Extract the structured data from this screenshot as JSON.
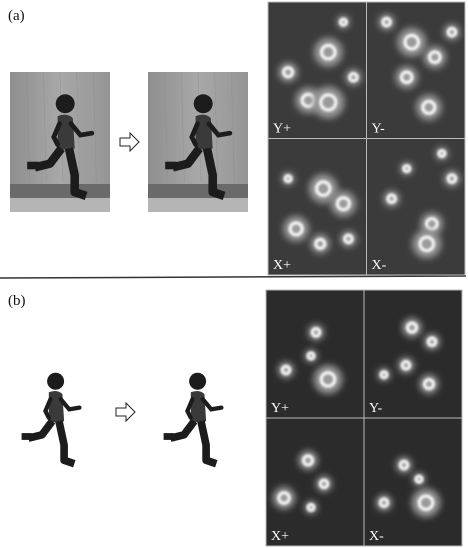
{
  "panels": [
    {
      "label": "(a)",
      "tiles": [
        "Y+",
        "Y-",
        "X+",
        "X-"
      ]
    },
    {
      "label": "(b)",
      "tiles": [
        "Y+",
        "Y-",
        "X+",
        "X-"
      ]
    }
  ]
}
